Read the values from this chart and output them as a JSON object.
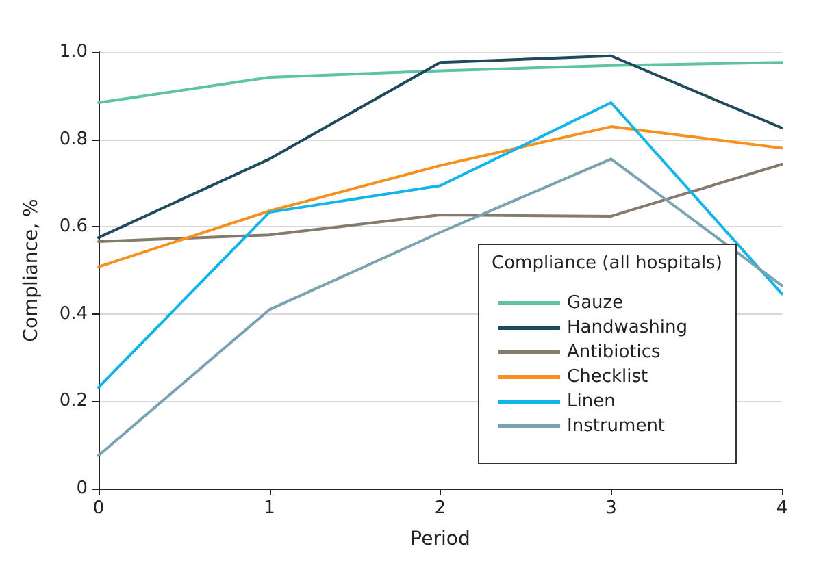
{
  "chart_data": {
    "type": "line",
    "xlabel": "Period",
    "ylabel": "Compliance, %",
    "legend_title": "Compliance (all hospitals)",
    "legend": "bottom right",
    "grid": "y",
    "marker": "none",
    "line_style": "solid",
    "x": [
      0,
      1,
      2,
      3,
      4
    ],
    "xlim": [
      0,
      4
    ],
    "xticks": [
      0,
      1,
      2,
      3,
      4
    ],
    "ylim": [
      0,
      1.0
    ],
    "yticks": [
      0,
      {
        "value": 0.2,
        "label": "0.2"
      },
      {
        "value": 0.4,
        "label": "0.4"
      },
      {
        "value": 0.6,
        "label": "0.6"
      },
      {
        "value": 0.8,
        "label": "0.8"
      },
      {
        "value": 1.0,
        "label": "1.0"
      }
    ],
    "series": [
      {
        "name": "Gauze",
        "color": "#5ec4a0",
        "values": [
          0.884,
          0.942,
          0.957,
          0.969,
          0.976
        ]
      },
      {
        "name": "Handwashing",
        "color": "#1f4a5c",
        "values": [
          0.575,
          0.755,
          0.976,
          0.991,
          0.826
        ]
      },
      {
        "name": "Antibiotics",
        "color": "#857a6e",
        "values": [
          0.566,
          0.581,
          0.627,
          0.624,
          0.743
        ]
      },
      {
        "name": "Checklist",
        "color": "#f7901e",
        "values": [
          0.508,
          0.636,
          0.74,
          0.829,
          0.78
        ]
      },
      {
        "name": "Linen",
        "color": "#12b5ea",
        "values": [
          0.232,
          0.633,
          0.694,
          0.884,
          0.446
        ]
      },
      {
        "name": "Instrument",
        "color": "#7aa3b1",
        "values": [
          0.076,
          0.41,
          0.587,
          0.755,
          0.465
        ]
      }
    ]
  }
}
